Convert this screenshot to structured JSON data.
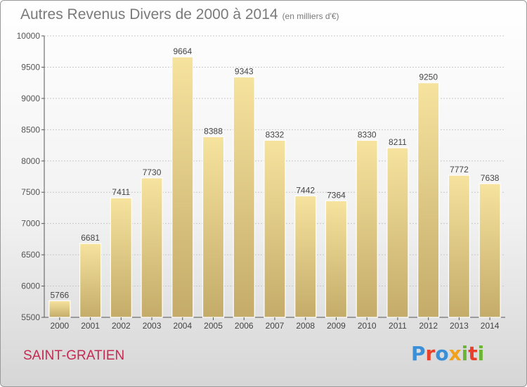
{
  "title": "Autres Revenus Divers de 2000 à 2014",
  "unit_note": "(en milliers d'€)",
  "location": "SAINT-GRATIEN",
  "brand": {
    "text": "Proxiti",
    "letters": [
      "P",
      "r",
      "o",
      "x",
      "i",
      "t",
      "i"
    ]
  },
  "colors": {
    "bar_top": "#f6e39e",
    "bar_bottom": "#c4ab69",
    "grid": "#c8c8c8",
    "axis": "#555555",
    "city": "#c62a52"
  },
  "chart_data": {
    "type": "bar",
    "categories": [
      "2000",
      "2001",
      "2002",
      "2003",
      "2004",
      "2005",
      "2006",
      "2007",
      "2008",
      "2009",
      "2010",
      "2011",
      "2012",
      "2013",
      "2014"
    ],
    "values": [
      5766,
      6681,
      7411,
      7730,
      9664,
      8388,
      9343,
      8332,
      7442,
      7364,
      8330,
      8211,
      9250,
      7772,
      7638
    ],
    "ylim": [
      5500,
      10000
    ],
    "yticks": [
      5500,
      6000,
      6500,
      7000,
      7500,
      8000,
      8500,
      9000,
      9500,
      10000
    ],
    "grid": true
  }
}
